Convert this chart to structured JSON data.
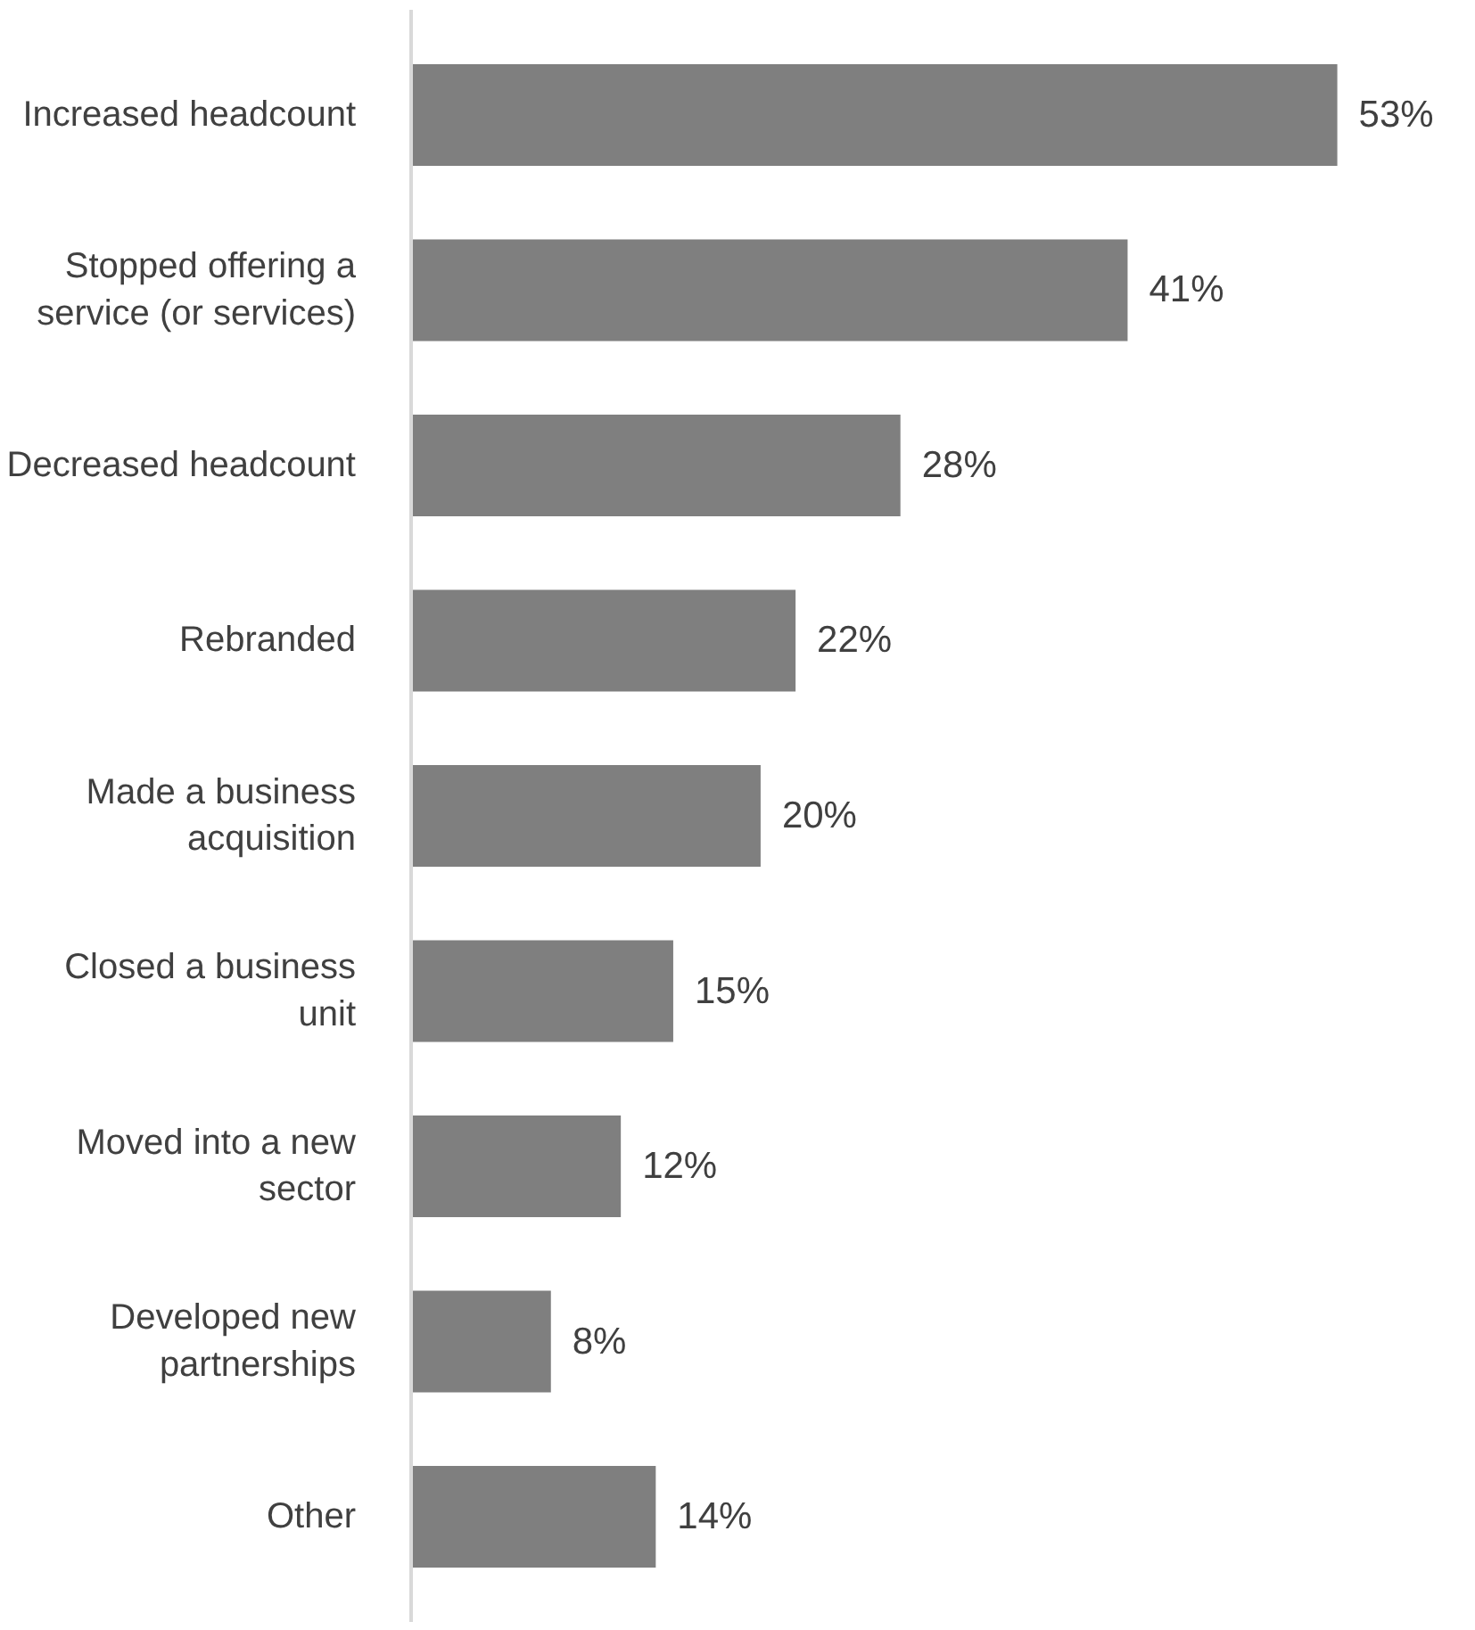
{
  "chart_data": {
    "type": "bar",
    "orientation": "horizontal",
    "categories": [
      "Increased headcount",
      "Stopped offering a service (or services)",
      "Decreased headcount",
      "Rebranded",
      "Made a business acquisition",
      "Closed a business unit",
      "Moved into a new sector",
      "Developed new partnerships",
      "Other"
    ],
    "values": [
      53,
      41,
      28,
      22,
      20,
      15,
      12,
      8,
      14
    ],
    "value_labels": [
      "53%",
      "41%",
      "28%",
      "22%",
      "20%",
      "15%",
      "12%",
      "8%",
      "14%"
    ],
    "color": "#7f7f7f",
    "tick_labels": "y"
  }
}
